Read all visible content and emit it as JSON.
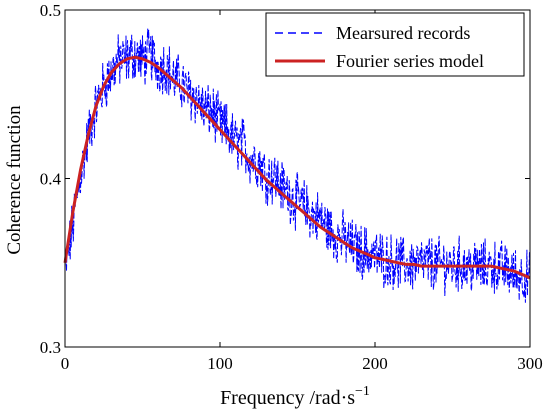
{
  "chart_data": {
    "type": "line",
    "title": "",
    "xlabel": "Frequency /rad·s",
    "xlabel_superscript": "−1",
    "ylabel": "Coherence function",
    "xlim": [
      0,
      300
    ],
    "ylim": [
      0.3,
      0.5
    ],
    "xticks": [
      0,
      100,
      200,
      300
    ],
    "yticks": [
      0.3,
      0.4,
      0.5
    ],
    "xtick_labels": [
      "0",
      "100",
      "200",
      "300"
    ],
    "ytick_labels": [
      "0.3",
      "0.4",
      "0.5"
    ],
    "grid": false,
    "legend_position": "top-right",
    "series": [
      {
        "name": "Mearsured records",
        "color": "#0000ff",
        "style": "dashed",
        "x": [
          0,
          5,
          10,
          15,
          20,
          25,
          30,
          35,
          40,
          45,
          50,
          55,
          60,
          65,
          70,
          75,
          80,
          85,
          90,
          95,
          100,
          105,
          110,
          115,
          120,
          125,
          130,
          135,
          140,
          145,
          150,
          155,
          160,
          165,
          170,
          175,
          180,
          185,
          190,
          195,
          200,
          205,
          210,
          215,
          220,
          225,
          230,
          235,
          240,
          245,
          250,
          255,
          260,
          265,
          270,
          275,
          280,
          285,
          290,
          295,
          300
        ],
        "y": [
          0.345,
          0.372,
          0.402,
          0.425,
          0.443,
          0.455,
          0.463,
          0.47,
          0.471,
          0.474,
          0.47,
          0.474,
          0.466,
          0.468,
          0.459,
          0.457,
          0.45,
          0.448,
          0.44,
          0.44,
          0.432,
          0.428,
          0.421,
          0.42,
          0.412,
          0.41,
          0.402,
          0.401,
          0.395,
          0.39,
          0.386,
          0.383,
          0.378,
          0.376,
          0.37,
          0.366,
          0.364,
          0.36,
          0.357,
          0.356,
          0.354,
          0.352,
          0.351,
          0.35,
          0.349,
          0.349,
          0.349,
          0.35,
          0.349,
          0.349,
          0.348,
          0.349,
          0.347,
          0.348,
          0.347,
          0.348,
          0.347,
          0.346,
          0.343,
          0.343,
          0.34
        ]
      },
      {
        "name": "Fourier series model",
        "color": "#cc2222",
        "style": "solid",
        "x": [
          0,
          5,
          10,
          15,
          20,
          25,
          30,
          35,
          40,
          45,
          50,
          55,
          60,
          65,
          70,
          75,
          80,
          85,
          90,
          95,
          100,
          105,
          110,
          115,
          120,
          125,
          130,
          135,
          140,
          145,
          150,
          155,
          160,
          165,
          170,
          175,
          180,
          185,
          190,
          195,
          200,
          205,
          210,
          215,
          220,
          225,
          230,
          235,
          240,
          245,
          250,
          255,
          260,
          265,
          270,
          275,
          280,
          285,
          290,
          295,
          300
        ],
        "y": [
          0.35,
          0.38,
          0.405,
          0.426,
          0.443,
          0.455,
          0.463,
          0.468,
          0.471,
          0.472,
          0.471,
          0.469,
          0.466,
          0.462,
          0.458,
          0.454,
          0.449,
          0.444,
          0.439,
          0.434,
          0.429,
          0.424,
          0.419,
          0.414,
          0.409,
          0.404,
          0.399,
          0.395,
          0.391,
          0.387,
          0.383,
          0.379,
          0.375,
          0.371,
          0.368,
          0.365,
          0.362,
          0.359,
          0.357,
          0.355,
          0.353,
          0.352,
          0.351,
          0.35,
          0.349,
          0.349,
          0.348,
          0.348,
          0.348,
          0.348,
          0.348,
          0.348,
          0.348,
          0.348,
          0.348,
          0.348,
          0.347,
          0.346,
          0.345,
          0.343,
          0.341
        ]
      }
    ]
  }
}
